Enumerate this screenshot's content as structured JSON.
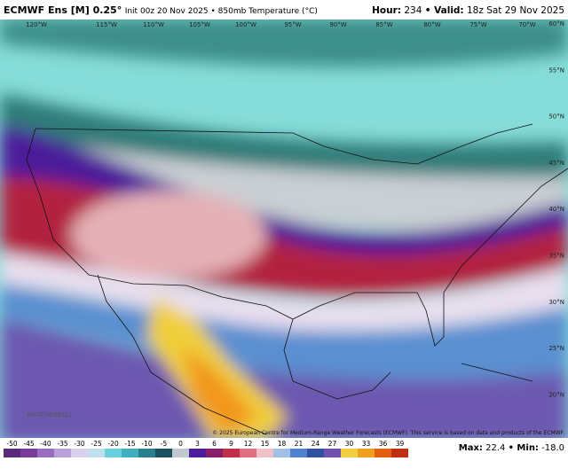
{
  "header": {
    "title_bold": "ECMWF Ens [M] 0.25°",
    "title_rest": "Init 00z 20 Nov 2025 • 850mb Temperature (°C)",
    "hour_label": "Hour:",
    "hour": "234",
    "valid_label": "• Valid:",
    "valid": "18z Sat 29 Nov 2025"
  },
  "map": {
    "lon_labels": [
      "120°W",
      "115°W",
      "110°W",
      "105°W",
      "100°W",
      "95°W",
      "90°W",
      "85°W",
      "80°W",
      "75°W",
      "70°W"
    ],
    "lat_labels": [
      "60°N",
      "55°N",
      "50°N",
      "45°N",
      "40°N",
      "35°N",
      "30°N",
      "25°N",
      "20°N"
    ],
    "copyright": "© 2025 European Centre for Medium-Range Weather Forecasts (ECMWF). This service is based on data and products of the ECMWF.",
    "logo": "WEATHERBELL"
  },
  "colorbar": {
    "ticks": [
      -50,
      -45,
      -40,
      -35,
      -30,
      -25,
      -20,
      -15,
      -10,
      -5,
      0,
      3,
      6,
      9,
      12,
      15,
      18,
      21,
      24,
      27,
      30,
      33,
      36,
      39
    ],
    "colors": [
      "#5a2a7a",
      "#7a3c9a",
      "#9a6cc0",
      "#b8a0d8",
      "#d8d0ec",
      "#c0e0f0",
      "#6ad0e0",
      "#40b0c0",
      "#2a8090",
      "#1a5060",
      "#c0c8d0",
      "#4a1d9a",
      "#8a1d6a",
      "#c0304a",
      "#e07080",
      "#f0c0c8",
      "#a0c0e8",
      "#5080d0",
      "#3050a0",
      "#7050b0",
      "#f0d040",
      "#f0a020",
      "#e06010",
      "#c03010"
    ]
  },
  "stats": {
    "max_label": "Max:",
    "max": 22.4,
    "min_label": "• Min:",
    "min": -18.0
  }
}
